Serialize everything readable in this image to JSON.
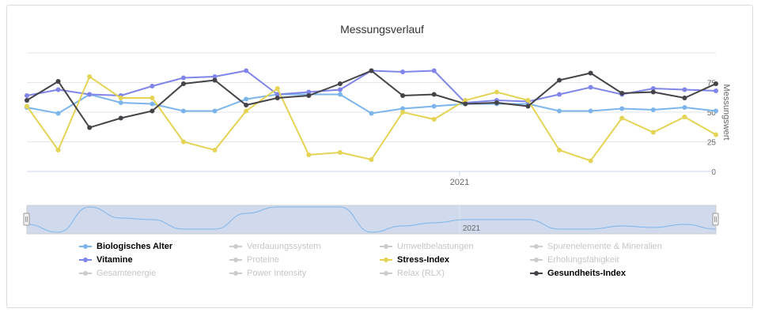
{
  "chart_data": {
    "type": "line",
    "title": "Messungsverlauf",
    "ylabel": "Messungswert",
    "ylim": [
      0,
      100
    ],
    "yticks": [
      0,
      25,
      50,
      75
    ],
    "x_axis_labels": [
      "2021"
    ],
    "navigator_label": "2021",
    "grid": "horizontal",
    "legend_position": "bottom",
    "series": [
      {
        "name": "Biologisches Alter",
        "color": "#7cb5ec",
        "visible": true,
        "values": [
          54,
          49,
          65,
          58,
          57,
          51,
          51,
          61,
          65,
          65,
          65,
          49,
          53,
          55,
          57,
          57,
          57,
          51,
          51,
          53,
          52,
          54,
          51
        ]
      },
      {
        "name": "Verdauungssystem",
        "visible": false,
        "values": []
      },
      {
        "name": "Umweltbelastungen",
        "visible": false,
        "values": []
      },
      {
        "name": "Spurenelemente & Mineralien",
        "visible": false,
        "values": []
      },
      {
        "name": "Vitamine",
        "color": "#8085e9",
        "visible": true,
        "values": [
          64,
          69,
          65,
          64,
          72,
          79,
          80,
          85,
          65,
          67,
          69,
          85,
          84,
          85,
          58,
          60,
          59,
          65,
          71,
          65,
          70,
          69,
          68
        ]
      },
      {
        "name": "Proteine",
        "visible": false,
        "values": []
      },
      {
        "name": "Stress-Index",
        "color": "#e4d354",
        "visible": true,
        "values": [
          55,
          18,
          80,
          62,
          62,
          25,
          18,
          51,
          70,
          14,
          16,
          10,
          50,
          44,
          60,
          67,
          60,
          18,
          9,
          45,
          33,
          46,
          31
        ]
      },
      {
        "name": "Erholungsfähigkeit",
        "visible": false,
        "values": []
      },
      {
        "name": "Gesamtenergie",
        "visible": false,
        "values": []
      },
      {
        "name": "Power Intensity",
        "visible": false,
        "values": []
      },
      {
        "name": "Relax (RLX)",
        "visible": false,
        "values": []
      },
      {
        "name": "Gesundheits-Index",
        "color": "#434348",
        "visible": true,
        "values": [
          60,
          76,
          37,
          45,
          51,
          74,
          77,
          56,
          62,
          64,
          74,
          85,
          64,
          65,
          57,
          58,
          55,
          77,
          83,
          66,
          67,
          62,
          74
        ]
      }
    ]
  }
}
